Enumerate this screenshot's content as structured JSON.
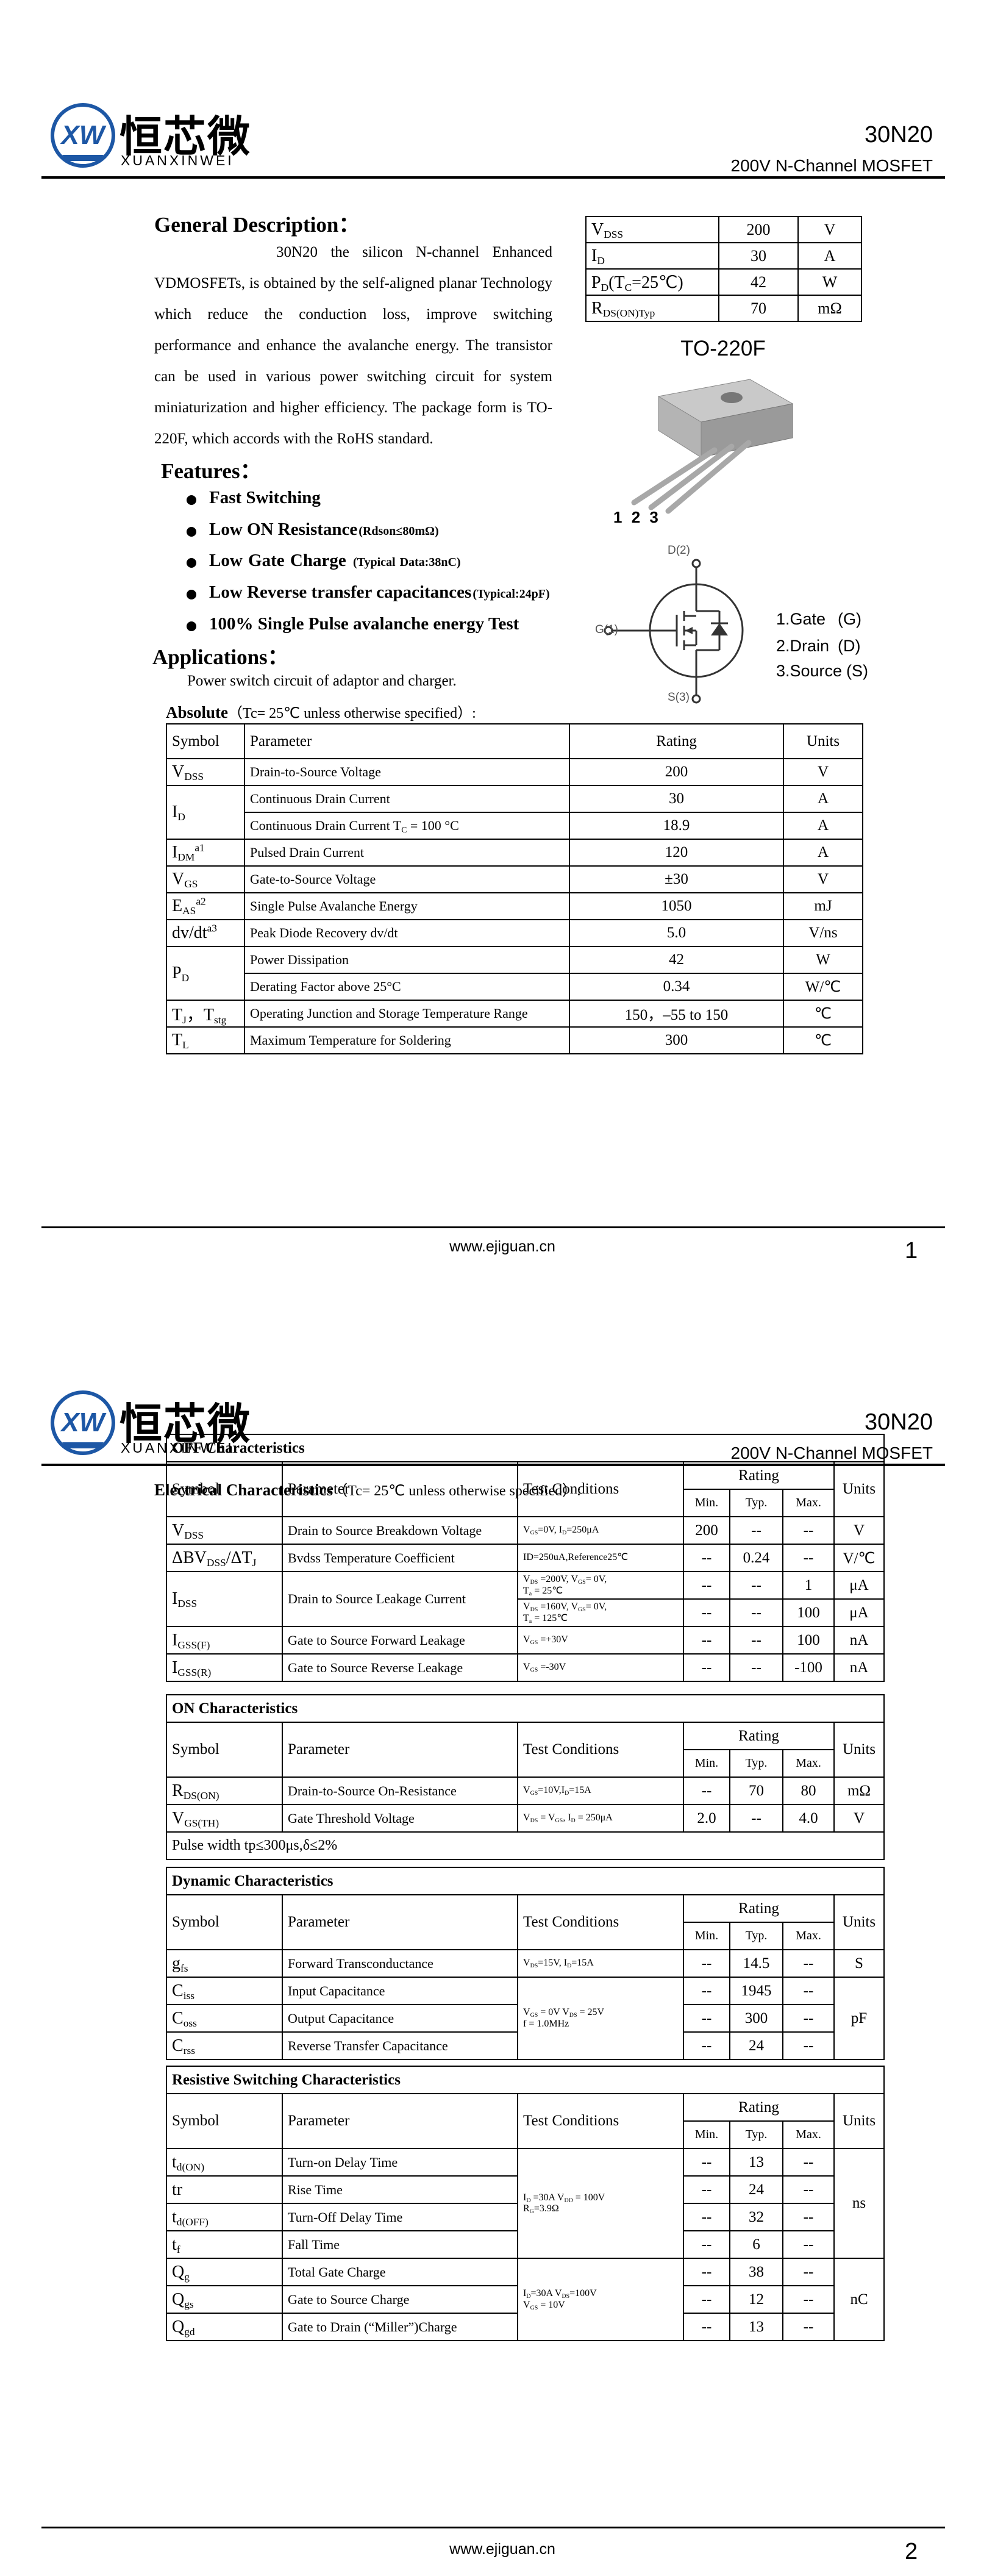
{
  "pages": [
    {
      "header": {
        "logo_mark": "XW",
        "logo_cn": "恒芯微",
        "logo_en": "XUANXINWEI",
        "part": "30N20",
        "subtitle": "200V N-Channel MOSFET"
      },
      "general_description": {
        "title": "General Description：",
        "text": "30N20 the silicon N-channel Enhanced VDMOSFETs, is obtained by the self-aligned planar Technology which reduce the conduction loss, improve switching performance and enhance the avalanche energy. The transistor can be used in various power switching circuit for system miniaturization and higher efficiency. The package form is TO-220F, which accords with the RoHS standard."
      },
      "summary": [
        {
          "symbol": [
            "V",
            {
              "sub": "DSS"
            }
          ],
          "value": "200",
          "unit": "V"
        },
        {
          "symbol": [
            "I",
            {
              "sub": "D"
            }
          ],
          "value": "30",
          "unit": "A"
        },
        {
          "symbol": [
            "P",
            {
              "sub": "D"
            },
            "(T",
            {
              "sub": "C"
            },
            "=25℃)"
          ],
          "value": "42",
          "unit": "W"
        },
        {
          "symbol": [
            "R",
            {
              "sub": "DS(ON)Typ"
            }
          ],
          "value": "70",
          "unit": "mΩ"
        }
      ],
      "package": {
        "name": "TO-220F",
        "pins": [
          "1",
          "2",
          "3"
        ],
        "symbol_labels": {
          "drain": "D(2)",
          "gate": "G(1)",
          "source": "S(3)"
        },
        "pinout": [
          [
            "1.Gate",
            "(G)"
          ],
          [
            "2.Drain",
            "(D)"
          ],
          [
            "3.Source",
            "(S)"
          ]
        ]
      },
      "features": {
        "title": "Features：",
        "items": [
          [
            "Fast Switching"
          ],
          [
            "Low ON Resistance",
            {
              "small": "(Rdson≤80mΩ)"
            }
          ],
          [
            "Low Gate Charge  ",
            {
              "small": "(Typical Data:38nC)"
            }
          ],
          [
            "Low Reverse transfer capacitances",
            {
              "small": "(Typical:24pF)"
            }
          ],
          [
            "100% Single Pulse avalanche energy Test"
          ]
        ]
      },
      "applications": {
        "title": "Applications：",
        "text": "Power switch circuit of adaptor and charger."
      },
      "absolute": {
        "title": [
          {
            "bold": "Absolute"
          },
          "（Tc= 25℃  unless otherwise specified）:"
        ],
        "header": {
          "symbol": "Symbol",
          "parameter": "Parameter",
          "rating": "Rating",
          "unit": "Units"
        },
        "rows": [
          {
            "symbol": [
              "V",
              {
                "sub": "DSS"
              }
            ],
            "parameter": "Drain-to-Source Voltage",
            "rating": "200",
            "unit": "V"
          },
          {
            "symbol": [
              "I",
              {
                "sub": "D"
              }
            ],
            "parameter": "Continuous Drain Current",
            "rating": "30",
            "unit": "A"
          },
          {
            "parameter": [
              "Continuous Drain Current T",
              {
                "sub": "C"
              },
              " = 100 °C"
            ],
            "rating": "18.9",
            "unit": "A"
          },
          {
            "symbol": [
              "I",
              {
                "sub": "DM"
              },
              {
                "sup": "a1"
              }
            ],
            "parameter": "Pulsed Drain Current",
            "rating": "120",
            "unit": "A"
          },
          {
            "symbol": [
              "V",
              {
                "sub": "GS"
              }
            ],
            "parameter": "Gate-to-Source Voltage",
            "rating": "±30",
            "unit": "V"
          },
          {
            "symbol": [
              "E",
              {
                "sub": "AS"
              },
              {
                "sup": "a2"
              }
            ],
            "parameter": "Single Pulse Avalanche Energy",
            "rating": "1050",
            "unit": "mJ"
          },
          {
            "symbol": [
              "dv/dt",
              {
                "sup": "a3"
              }
            ],
            "parameter": "Peak Diode Recovery dv/dt",
            "rating": "5.0",
            "unit": "V/ns"
          },
          {
            "symbol": [
              "P",
              {
                "sub": "D"
              }
            ],
            "parameter": "Power Dissipation",
            "rating": "42",
            "unit": "W"
          },
          {
            "parameter": "Derating Factor above 25°C",
            "rating": "0.34",
            "unit": "W/℃"
          },
          {
            "symbol": [
              "T",
              {
                "sub": "J"
              },
              "，T",
              {
                "sub": "stg"
              }
            ],
            "parameter": "Operating Junction and Storage Temperature Range",
            "rating": "150，–55 to 150",
            "unit": "℃"
          },
          {
            "symbol": [
              "T",
              {
                "sub": "L"
              }
            ],
            "parameter": "Maximum Temperature for Soldering",
            "rating": "300",
            "unit": "℃"
          }
        ]
      },
      "footer": {
        "url": "www.ejiguan.cn",
        "page": "1"
      }
    },
    {
      "header": {
        "logo_mark": "XW",
        "logo_cn": "恒芯微",
        "logo_en": "XUANXINWEI",
        "part": "30N20",
        "subtitle": "200V N-Channel MOSFET"
      },
      "electrical": {
        "title": [
          {
            "bold": "Electrical Characteristics"
          },
          "（Tc= 25℃  unless otherwise specified）:"
        ],
        "sections": [
          {
            "title": "OFF Characteristics",
            "header": {
              "symbol": "Symbol",
              "parameter": "Parameter",
              "conditions": "Test Conditions",
              "rating": "Rating",
              "min": "Min.",
              "typ": "Typ.",
              "max": "Max.",
              "unit": "Units"
            },
            "rows": [
              {
                "symbol": [
                  "V",
                  {
                    "sub": "DSS"
                  }
                ],
                "parameter": "Drain to Source Breakdown Voltage",
                "conditions": [
                  "V",
                  {
                    "sub": "GS"
                  },
                  "=0V, I",
                  {
                    "sub": "D"
                  },
                  "=250μA"
                ],
                "min": "200",
                "typ": "--",
                "max": "--",
                "unit": "V"
              },
              {
                "symbol": [
                  "ΔBV",
                  {
                    "sub": "DSS"
                  },
                  "/ΔT",
                  {
                    "sub": "J"
                  }
                ],
                "parameter": "Bvdss Temperature Coefficient",
                "conditions": "ID=250uA,Reference25℃",
                "min": "--",
                "typ": "0.24",
                "max": "--",
                "unit": "V/℃"
              },
              {
                "symbol": [
                  "I",
                  {
                    "sub": "DSS"
                  }
                ],
                "parameter": "Drain to Source Leakage Current",
                "conditions": [
                  [
                    "V",
                    {
                      "sub": "DS"
                    },
                    " =200V, V",
                    {
                      "sub": "GS"
                    },
                    "= 0V,"
                  ],
                  [
                    "T",
                    {
                      "sub": "a"
                    },
                    " = 25℃"
                  ]
                ],
                "min": "--",
                "typ": "--",
                "max": "1",
                "unit": "μA"
              },
              {
                "conditions": [
                  [
                    "V",
                    {
                      "sub": "DS"
                    },
                    " =160V, V",
                    {
                      "sub": "GS"
                    },
                    "= 0V,"
                  ],
                  [
                    "T",
                    {
                      "sub": "a"
                    },
                    " = 125℃"
                  ]
                ],
                "min": "--",
                "typ": "--",
                "max": "100",
                "unit": "μA"
              },
              {
                "symbol": [
                  "I",
                  {
                    "sub": "GSS(F)"
                  }
                ],
                "parameter": "Gate to Source Forward Leakage",
                "conditions": [
                  "V",
                  {
                    "sub": "GS"
                  },
                  " =+30V"
                ],
                "min": "--",
                "typ": "--",
                "max": "100",
                "unit": "nA"
              },
              {
                "symbol": [
                  "I",
                  {
                    "sub": "GSS(R)"
                  }
                ],
                "parameter": "Gate to Source Reverse Leakage",
                "conditions": [
                  "V",
                  {
                    "sub": "GS"
                  },
                  " =-30V"
                ],
                "min": "--",
                "typ": "--",
                "max": "-100",
                "unit": "nA"
              }
            ]
          },
          {
            "title": "ON Characteristics",
            "header": {
              "symbol": "Symbol",
              "parameter": "Parameter",
              "conditions": "Test Conditions",
              "rating": "Rating",
              "min": "Min.",
              "typ": "Typ.",
              "max": "Max.",
              "unit": "Units"
            },
            "rows": [
              {
                "symbol": [
                  "R",
                  {
                    "sub": "DS(ON)"
                  }
                ],
                "parameter": "Drain-to-Source On-Resistance",
                "conditions": [
                  "V",
                  {
                    "sub": "GS"
                  },
                  "=10V,I",
                  {
                    "sub": "D"
                  },
                  "=15A"
                ],
                "min": "--",
                "typ": "70",
                "max": "80",
                "unit": "mΩ"
              },
              {
                "symbol": [
                  "V",
                  {
                    "sub": "GS(TH)"
                  }
                ],
                "parameter": "Gate Threshold Voltage",
                "conditions": [
                  "V",
                  {
                    "sub": "DS"
                  },
                  " = V",
                  {
                    "sub": "GS"
                  },
                  ", I",
                  {
                    "sub": "D"
                  },
                  " = 250μA"
                ],
                "min": "2.0",
                "typ": "--",
                "max": "4.0",
                "unit": "V"
              }
            ],
            "note": "Pulse width tp≤300μs,δ≤2%"
          },
          {
            "title": "Dynamic Characteristics",
            "header": {
              "symbol": "Symbol",
              "parameter": "Parameter",
              "conditions": "Test Conditions",
              "rating": "Rating",
              "min": "Min.",
              "typ": "Typ.",
              "max": "Max.",
              "unit": "Units"
            },
            "rows": [
              {
                "symbol": [
                  "g",
                  {
                    "sub": "fs"
                  }
                ],
                "parameter": "Forward Transconductance",
                "conditions": [
                  "V",
                  {
                    "sub": "DS"
                  },
                  "=15V, I",
                  {
                    "sub": "D"
                  },
                  "=15A"
                ],
                "min": "--",
                "typ": "14.5",
                "max": "--",
                "unit": "S"
              },
              {
                "symbol": [
                  "C",
                  {
                    "sub": "iss"
                  }
                ],
                "parameter": "Input Capacitance",
                "conditions": [
                  [
                    "V",
                    {
                      "sub": "GS"
                    },
                    " = 0V V",
                    {
                      "sub": "DS"
                    },
                    " = 25V"
                  ],
                  [
                    "f = 1.0MHz"
                  ]
                ],
                "min": "--",
                "typ": "1945",
                "max": "--",
                "unit": "pF"
              },
              {
                "symbol": [
                  "C",
                  {
                    "sub": "oss"
                  }
                ],
                "parameter": "Output Capacitance",
                "min": "--",
                "typ": "300",
                "max": "--"
              },
              {
                "symbol": [
                  "C",
                  {
                    "sub": "rss"
                  }
                ],
                "parameter": "Reverse Transfer Capacitance",
                "min": "--",
                "typ": "24",
                "max": "--"
              }
            ]
          },
          {
            "title": "Resistive Switching Characteristics",
            "header": {
              "symbol": "Symbol",
              "parameter": "Parameter",
              "conditions": "Test Conditions",
              "rating": "Rating",
              "min": "Min.",
              "typ": "Typ.",
              "max": "Max.",
              "unit": "Units"
            },
            "rows": [
              {
                "symbol": [
                  "t",
                  {
                    "sub": "d(ON)"
                  }
                ],
                "parameter": "Turn-on Delay Time",
                "conditions": [
                  [
                    "I",
                    {
                      "sub": "D"
                    },
                    " =30A    V",
                    {
                      "sub": "DD"
                    },
                    " = 100V"
                  ],
                  [
                    "R",
                    {
                      "sub": "G"
                    },
                    "=3.9Ω"
                  ]
                ],
                "min": "--",
                "typ": "13",
                "max": "--",
                "unit": "ns"
              },
              {
                "symbol": "tr",
                "parameter": "Rise Time",
                "min": "--",
                "typ": "24",
                "max": "--"
              },
              {
                "symbol": [
                  "t",
                  {
                    "sub": "d(OFF)"
                  }
                ],
                "parameter": "Turn-Off Delay Time",
                "min": "--",
                "typ": "32",
                "max": "--"
              },
              {
                "symbol": [
                  "t",
                  {
                    "sub": "f"
                  }
                ],
                "parameter": "Fall Time",
                "min": "--",
                "typ": "6",
                "max": "--"
              },
              {
                "symbol": [
                  "Q",
                  {
                    "sub": "g"
                  }
                ],
                "parameter": "Total Gate Charge",
                "conditions": [
                  [
                    "I",
                    {
                      "sub": "D"
                    },
                    "=30A    V",
                    {
                      "sub": "DS"
                    },
                    "=100V"
                  ],
                  [
                    "V",
                    {
                      "sub": "GS"
                    },
                    " = 10V"
                  ]
                ],
                "min": "--",
                "typ": "38",
                "max": "--",
                "unit": "nC"
              },
              {
                "symbol": [
                  "Q",
                  {
                    "sub": "gs"
                  }
                ],
                "parameter": "Gate to Source Charge",
                "min": "--",
                "typ": "12",
                "max": "--"
              },
              {
                "symbol": [
                  "Q",
                  {
                    "sub": "gd"
                  }
                ],
                "parameter": "Gate to Drain (“Miller”)Charge",
                "min": "--",
                "typ": "13",
                "max": "--"
              }
            ]
          }
        ]
      },
      "footer": {
        "url": "www.ejiguan.cn",
        "page": "2"
      }
    }
  ]
}
